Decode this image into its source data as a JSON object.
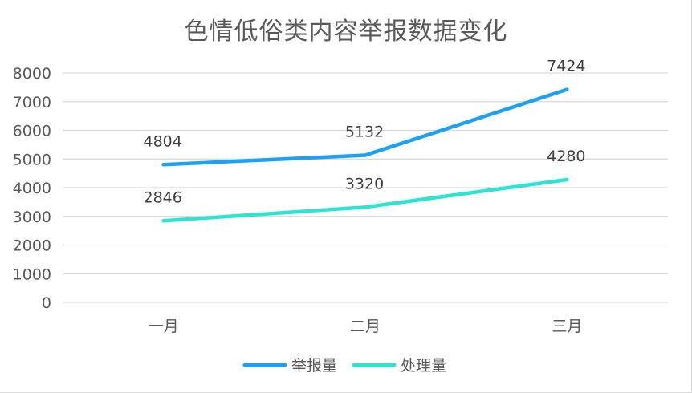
{
  "chart_data": {
    "type": "line",
    "title": "色情低俗类内容举报数据变化",
    "categories": [
      "一月",
      "二月",
      "三月"
    ],
    "series": [
      {
        "name": "举报量",
        "values": [
          4804,
          5132,
          7424
        ],
        "color": "#1ea1f1"
      },
      {
        "name": "处理量",
        "values": [
          2846,
          3320,
          4280
        ],
        "color": "#2ee3cf"
      }
    ],
    "ylim": [
      0,
      8000
    ],
    "yticks": [
      0,
      1000,
      2000,
      3000,
      4000,
      5000,
      6000,
      7000,
      8000
    ],
    "grid": true,
    "legend_position": "bottom",
    "xlabel": "",
    "ylabel": ""
  }
}
